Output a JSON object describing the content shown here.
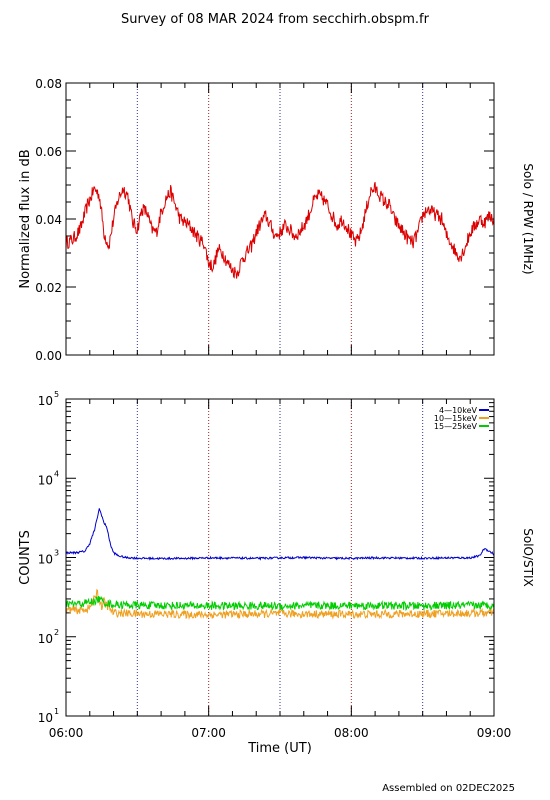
{
  "figure": {
    "title": "Survey of 08 MAR 2024 from secchirh.obspm.fr",
    "xlabel": "Time (UT)",
    "x_ticks": [
      "06:00",
      "07:00",
      "08:00",
      "09:00"
    ],
    "footer": "Assembled on 02DEC2025"
  },
  "chart_data": [
    {
      "type": "line",
      "panel": "top",
      "ylabel": "Normalized flux in dB",
      "side_label": "Solo / RPW (1MHz)",
      "xlim": [
        0,
        180
      ],
      "ylim": [
        0.0,
        0.08
      ],
      "y_ticks": [
        "0.00",
        "0.02",
        "0.04",
        "0.06",
        "0.08"
      ],
      "vlines": [
        30,
        60,
        90,
        120,
        150
      ],
      "series": [
        {
          "color": "#dd0000",
          "x": [
            0,
            3,
            6,
            9,
            12,
            14,
            16,
            18,
            20,
            22,
            24,
            26,
            28,
            30,
            32,
            34,
            36,
            38,
            40,
            42,
            44,
            46,
            48,
            50,
            52,
            54,
            56,
            58,
            60,
            62,
            64,
            66,
            68,
            70,
            72,
            74,
            76,
            78,
            80,
            82,
            84,
            86,
            88,
            90,
            92,
            94,
            96,
            98,
            100,
            102,
            104,
            106,
            108,
            110,
            112,
            114,
            116,
            118,
            120,
            122,
            124,
            126,
            128,
            130,
            132,
            134,
            136,
            138,
            140,
            142,
            144,
            146,
            148,
            150,
            152,
            154,
            156,
            158,
            160,
            162,
            164,
            166,
            168,
            170,
            172,
            174,
            176,
            178,
            180
          ],
          "values": [
            0.033,
            0.034,
            0.037,
            0.044,
            0.049,
            0.047,
            0.036,
            0.032,
            0.04,
            0.046,
            0.049,
            0.047,
            0.039,
            0.037,
            0.043,
            0.042,
            0.037,
            0.036,
            0.042,
            0.046,
            0.048,
            0.044,
            0.04,
            0.039,
            0.038,
            0.036,
            0.034,
            0.033,
            0.027,
            0.026,
            0.031,
            0.03,
            0.027,
            0.025,
            0.024,
            0.028,
            0.03,
            0.032,
            0.036,
            0.039,
            0.041,
            0.038,
            0.035,
            0.036,
            0.038,
            0.037,
            0.035,
            0.036,
            0.038,
            0.041,
            0.045,
            0.047,
            0.046,
            0.044,
            0.041,
            0.038,
            0.04,
            0.038,
            0.035,
            0.033,
            0.036,
            0.042,
            0.048,
            0.049,
            0.047,
            0.045,
            0.044,
            0.04,
            0.038,
            0.036,
            0.034,
            0.033,
            0.036,
            0.041,
            0.043,
            0.042,
            0.041,
            0.04,
            0.035,
            0.033,
            0.03,
            0.029,
            0.032,
            0.036,
            0.038,
            0.04,
            0.039,
            0.041,
            0.04
          ]
        }
      ]
    },
    {
      "type": "line",
      "panel": "bottom",
      "ylabel": "COUNTS",
      "side_label": "SolO/STIX",
      "xlim": [
        0,
        180
      ],
      "ylim": [
        10,
        100000
      ],
      "yscale": "log",
      "y_ticks": [
        "10^1",
        "10^2",
        "10^3",
        "10^4",
        "10^5"
      ],
      "vlines": [
        30,
        60,
        90,
        120,
        150
      ],
      "legend_position": "top-right",
      "series": [
        {
          "name": "4—10keV",
          "color": "#0000cc",
          "x": [
            0,
            4,
            8,
            10,
            12,
            13,
            14,
            15,
            16,
            17,
            18,
            19,
            20,
            22,
            25,
            30,
            40,
            50,
            60,
            70,
            80,
            90,
            100,
            110,
            120,
            130,
            140,
            150,
            160,
            170,
            174,
            176,
            178,
            180
          ],
          "values": [
            1150,
            1150,
            1200,
            1500,
            2200,
            3000,
            4100,
            3400,
            2700,
            2500,
            1800,
            1350,
            1150,
            1050,
            1000,
            980,
            970,
            975,
            990,
            985,
            975,
            990,
            1000,
            980,
            975,
            990,
            985,
            980,
            990,
            990,
            1050,
            1300,
            1200,
            1100
          ]
        },
        {
          "name": "10—15keV",
          "color": "#f0a020",
          "x": [
            0,
            6,
            10,
            12,
            13,
            14,
            15,
            16,
            18,
            20,
            30,
            60,
            90,
            120,
            150,
            180
          ],
          "values": [
            220,
            215,
            230,
            300,
            380,
            290,
            240,
            280,
            230,
            200,
            195,
            190,
            195,
            192,
            195,
            200
          ]
        },
        {
          "name": "15—25keV",
          "color": "#00cc00",
          "x": [
            0,
            6,
            12,
            14,
            16,
            20,
            30,
            60,
            90,
            120,
            150,
            180
          ],
          "values": [
            260,
            260,
            280,
            300,
            270,
            255,
            250,
            245,
            245,
            248,
            245,
            250
          ]
        }
      ]
    }
  ]
}
